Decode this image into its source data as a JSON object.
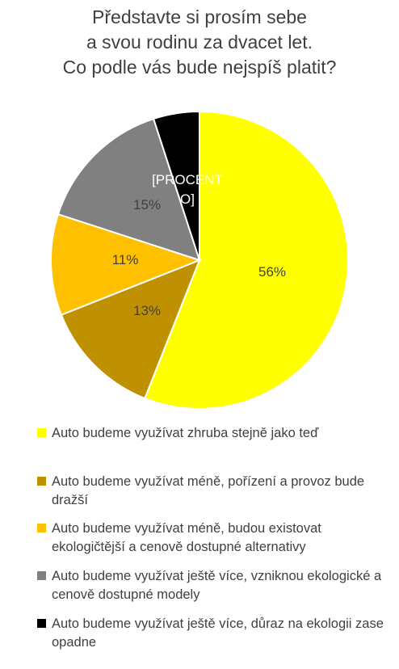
{
  "chart_data": {
    "type": "pie",
    "title_lines": [
      "Představte si prosím sebe",
      "a svou rodinu za dvacet let.",
      "Co podle vás bude nejspíš platit?"
    ],
    "slices": [
      {
        "label": "Auto budeme využívat zhruba stejně jako teď",
        "value": 56,
        "data_label": "56%",
        "color": "#FFFF00",
        "label_color": "#404040"
      },
      {
        "label": "Auto budeme využívat méně, pořízení a provoz bude dražší",
        "value": 13,
        "data_label": "13%",
        "color": "#BF9000",
        "label_color": "#404040"
      },
      {
        "label": "Auto budeme využívat méně, budou existovat ekologičtější a cenově dostupné alternativy",
        "value": 11,
        "data_label": "11%",
        "color": "#FFC000",
        "label_color": "#404040"
      },
      {
        "label": "Auto budeme využívat ještě více, vzniknou ekologické a cenově dostupné modely",
        "value": 15,
        "data_label": "15%",
        "color": "#808080",
        "label_color": "#404040"
      },
      {
        "label": "Auto budeme využívat ještě více, důraz na ekologii zase opadne",
        "value": 5,
        "data_label": "[PROCENTO]",
        "color": "#000000",
        "label_color": "#ffffff"
      }
    ],
    "legend_position": "bottom"
  }
}
